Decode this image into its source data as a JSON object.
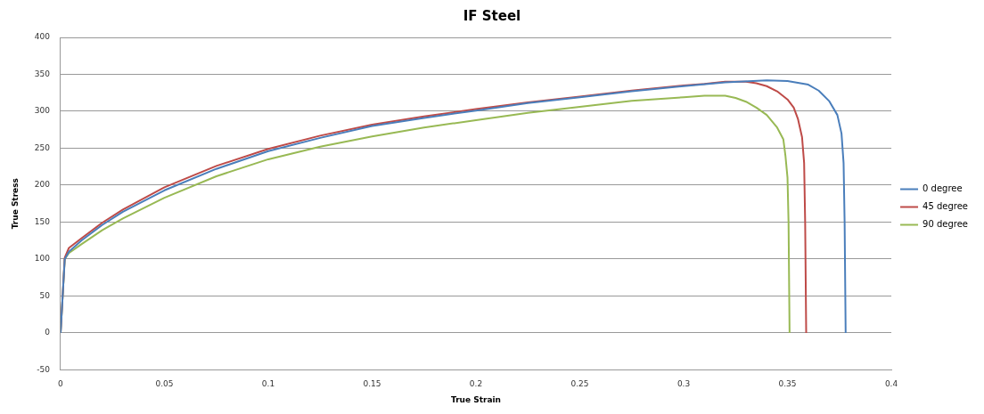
{
  "chart_data": {
    "type": "line",
    "title": "IF Steel",
    "xlabel": "True Strain",
    "ylabel": "True Stress",
    "xlim": [
      0,
      0.4
    ],
    "xticks": [
      0,
      0.05,
      0.1,
      0.15,
      0.2,
      0.25,
      0.3,
      0.35,
      0.4
    ],
    "ylim": [
      -50,
      400
    ],
    "yticks": [
      -50,
      0,
      50,
      100,
      150,
      200,
      250,
      300,
      350,
      400
    ],
    "grid": "y",
    "legend": "right",
    "marker": "none",
    "line_style": "solid",
    "series": [
      {
        "name": "0 degree",
        "color": "#4a7ebb",
        "x": [
          0,
          0.002,
          0.004,
          0.01,
          0.02,
          0.03,
          0.05,
          0.075,
          0.1,
          0.125,
          0.15,
          0.175,
          0.2,
          0.225,
          0.25,
          0.275,
          0.3,
          0.32,
          0.34,
          0.35,
          0.36,
          0.365,
          0.37,
          0.374,
          0.376,
          0.377,
          0.3775,
          0.378
        ],
        "values": [
          0,
          100,
          110,
          125,
          146,
          164,
          193,
          222,
          246,
          264,
          280,
          291,
          301,
          311,
          319,
          327,
          334,
          339,
          342,
          341,
          336,
          328,
          314,
          295,
          270,
          230,
          150,
          0
        ]
      },
      {
        "name": "45 degree",
        "color": "#be4b48",
        "x": [
          0,
          0.002,
          0.004,
          0.01,
          0.02,
          0.03,
          0.05,
          0.075,
          0.1,
          0.125,
          0.15,
          0.175,
          0.2,
          0.225,
          0.25,
          0.275,
          0.3,
          0.31,
          0.32,
          0.33,
          0.335,
          0.34,
          0.345,
          0.35,
          0.353,
          0.355,
          0.357,
          0.358,
          0.3585,
          0.359
        ],
        "values": [
          0,
          102,
          115,
          128,
          149,
          167,
          197,
          226,
          249,
          267,
          282,
          293,
          303,
          312,
          320,
          328,
          335,
          337,
          340,
          340,
          338,
          334,
          327,
          316,
          305,
          290,
          265,
          230,
          150,
          0
        ]
      },
      {
        "name": "90 degree",
        "color": "#98b954",
        "x": [
          0,
          0.002,
          0.004,
          0.01,
          0.02,
          0.03,
          0.05,
          0.075,
          0.1,
          0.125,
          0.15,
          0.175,
          0.2,
          0.225,
          0.25,
          0.275,
          0.3,
          0.31,
          0.32,
          0.325,
          0.33,
          0.335,
          0.34,
          0.345,
          0.348,
          0.349,
          0.35,
          0.3505,
          0.351
        ],
        "values": [
          0,
          100,
          108,
          120,
          139,
          155,
          183,
          212,
          235,
          252,
          266,
          278,
          288,
          298,
          306,
          314,
          319,
          321,
          321,
          318,
          313,
          305,
          295,
          278,
          262,
          240,
          210,
          150,
          0
        ]
      }
    ]
  }
}
